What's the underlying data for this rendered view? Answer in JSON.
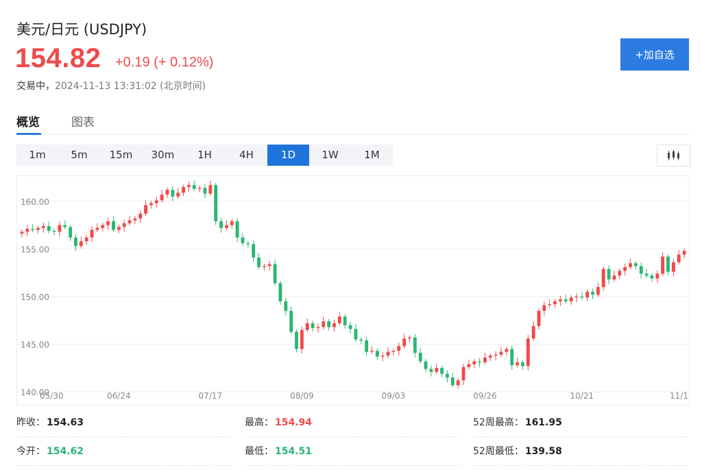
{
  "header": {
    "title": "美元/日元 (USDJPY)",
    "price": "154.82",
    "change": "+0.19 (+ 0.12%)",
    "status_label": "交易中，",
    "timestamp": "2024-11-13 13:31:02 (北京时间)",
    "add_button": "+加自选"
  },
  "tabs": [
    {
      "label": "概览",
      "active": true
    },
    {
      "label": "图表",
      "active": false
    }
  ],
  "periods": [
    {
      "label": "1m",
      "active": false
    },
    {
      "label": "5m",
      "active": false
    },
    {
      "label": "15m",
      "active": false
    },
    {
      "label": "30m",
      "active": false
    },
    {
      "label": "1H",
      "active": false
    },
    {
      "label": "4H",
      "active": false
    },
    {
      "label": "1D",
      "active": true
    },
    {
      "label": "1W",
      "active": false
    },
    {
      "label": "1M",
      "active": false
    }
  ],
  "chart_type_icon": "candlestick-icon",
  "colors": {
    "up": "#f04a4a",
    "down": "#2bb673",
    "accent": "#2b7be0"
  },
  "chart_data": {
    "type": "candlestick",
    "ylim": [
      140,
      162
    ],
    "yticks": [
      "160.00",
      "155.00",
      "150.00",
      "145.00",
      "140.00"
    ],
    "yticks_values": [
      160,
      155,
      150,
      145,
      140
    ],
    "xtick_labels": [
      "05/30",
      "06/24",
      "07/17",
      "08/09",
      "09/03",
      "09/26",
      "10/21",
      "11/1"
    ],
    "xtick_index": [
      0,
      18,
      35,
      52,
      69,
      86,
      104,
      121
    ],
    "closes": [
      156.8,
      157.1,
      157.0,
      157.2,
      157.4,
      156.9,
      156.8,
      157.5,
      157.3,
      156.2,
      155.3,
      155.8,
      156.2,
      157.0,
      157.2,
      157.5,
      157.9,
      157.0,
      157.3,
      157.7,
      158.0,
      158.2,
      158.7,
      159.6,
      159.8,
      160.1,
      160.7,
      161.2,
      160.5,
      160.9,
      161.5,
      161.7,
      161.3,
      161.4,
      160.8,
      161.7,
      157.9,
      157.2,
      157.5,
      157.9,
      156.2,
      155.6,
      155.5,
      154.1,
      153.1,
      153.2,
      153.4,
      151.4,
      149.5,
      148.5,
      146.3,
      144.5,
      146.5,
      147.2,
      146.7,
      146.8,
      147.4,
      146.8,
      147.2,
      147.9,
      147.0,
      146.6,
      145.5,
      145.4,
      144.2,
      144.3,
      143.7,
      143.8,
      144.2,
      144.3,
      144.8,
      145.6,
      145.7,
      144.1,
      143.2,
      142.4,
      142.1,
      142.5,
      141.9,
      141.5,
      140.7,
      141.2,
      142.6,
      142.9,
      143.2,
      143.1,
      143.6,
      143.8,
      143.9,
      144.2,
      144.5,
      142.8,
      143.1,
      142.7,
      145.6,
      146.9,
      148.5,
      149.1,
      149.2,
      149.5,
      149.7,
      149.5,
      149.9,
      150.0,
      149.9,
      150.5,
      150.2,
      151.0,
      152.9,
      151.8,
      152.2,
      152.7,
      153.1,
      153.5,
      153.2,
      152.4,
      152.2,
      151.9,
      152.4,
      154.2,
      152.6,
      153.6,
      154.4,
      154.8
    ],
    "change": "+0.19",
    "series": [
      {
        "name": "USDJPY 1D",
        "note": "OHLC derived from closes"
      }
    ]
  },
  "stats": [
    {
      "label": "昨收：",
      "value": "154.63",
      "tone": "neutral"
    },
    {
      "label": "最高：",
      "value": "154.94",
      "tone": "up"
    },
    {
      "label": "52周最高：",
      "value": "161.95",
      "tone": "neutral"
    },
    {
      "label": "今开：",
      "value": "154.62",
      "tone": "down"
    },
    {
      "label": "最低：",
      "value": "154.51",
      "tone": "down"
    },
    {
      "label": "52周最低：",
      "value": "139.58",
      "tone": "neutral"
    }
  ]
}
